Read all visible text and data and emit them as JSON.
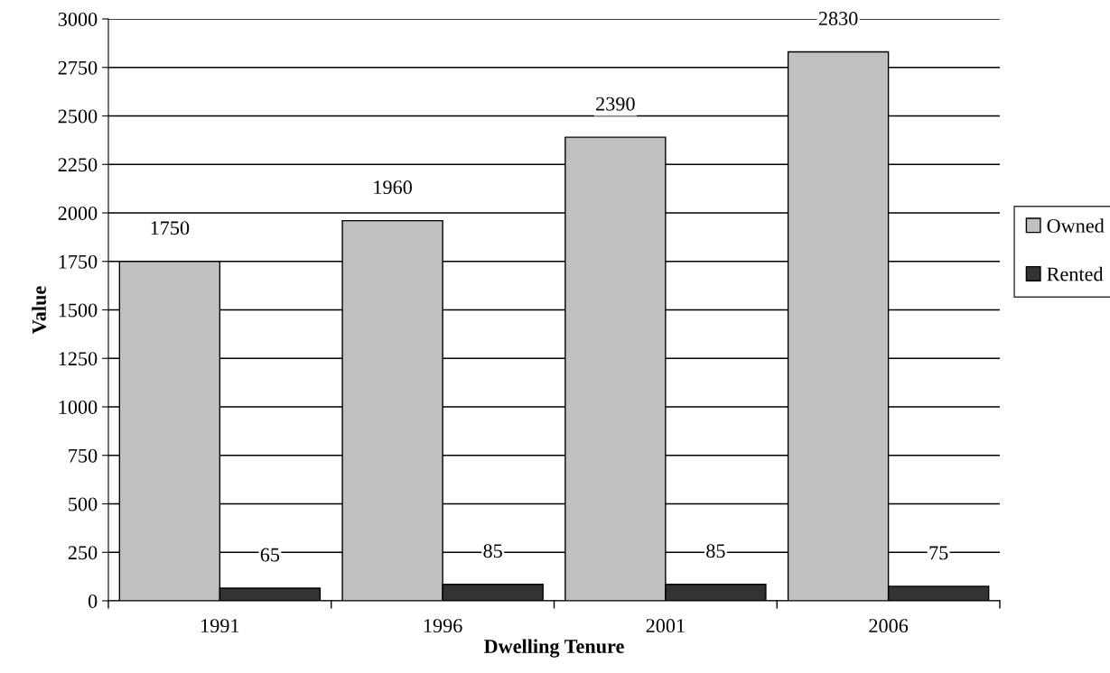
{
  "chart_data": {
    "type": "bar",
    "xlabel": "Dwelling Tenure",
    "ylabel": "Value",
    "categories": [
      "1991",
      "1996",
      "2001",
      "2006"
    ],
    "series": [
      {
        "name": "Owned",
        "color": "#c0c0c0",
        "values": [
          1750,
          1960,
          2390,
          2830
        ]
      },
      {
        "name": "Rented",
        "color": "#333333",
        "values": [
          65,
          85,
          85,
          75
        ]
      }
    ],
    "ylim": [
      0,
      3000
    ],
    "yticks": [
      0,
      250,
      500,
      750,
      1000,
      1250,
      1500,
      1750,
      2000,
      2250,
      2500,
      2750,
      3000
    ],
    "grid": "y",
    "legend": "right",
    "data_labels": true
  }
}
